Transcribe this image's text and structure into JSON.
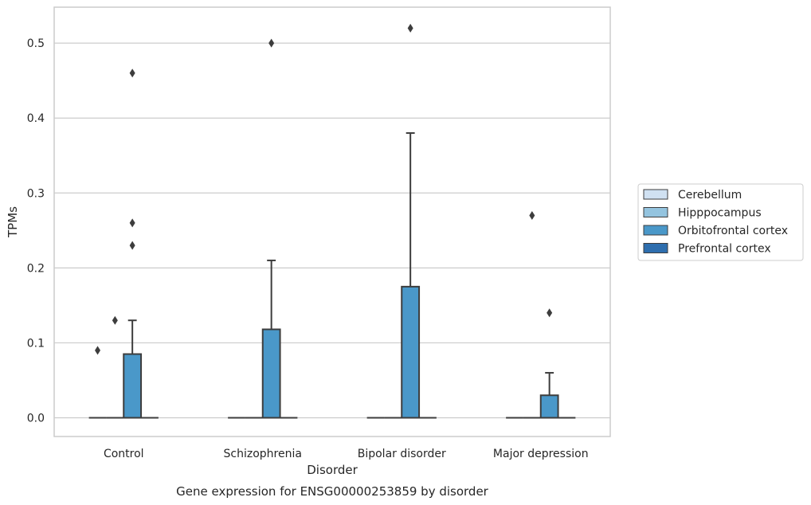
{
  "chart_data": {
    "type": "box",
    "title": "",
    "caption": "Gene expression for ENSG00000253859 by disorder",
    "xlabel": "Disorder",
    "ylabel": "TPMs",
    "ylim": [
      -0.025,
      0.548
    ],
    "yticks": [
      0.0,
      0.1,
      0.2,
      0.3,
      0.4,
      0.5
    ],
    "ytick_labels": [
      "0.0",
      "0.1",
      "0.2",
      "0.3",
      "0.4",
      "0.5"
    ],
    "grid": "horizontal",
    "legend_position": "right",
    "categories": [
      "Control",
      "Schizophrenia",
      "Bipolar disorder",
      "Major depression"
    ],
    "series": [
      {
        "name": "Cerebellum",
        "color": "#d0e1f2",
        "boxes": [
          {
            "q1": 0,
            "median": 0,
            "q3": 0,
            "whisker_low": 0,
            "whisker_high": 0,
            "outliers": [
              0.09
            ]
          },
          {
            "q1": 0,
            "median": 0,
            "q3": 0,
            "whisker_low": 0,
            "whisker_high": 0,
            "outliers": []
          },
          {
            "q1": 0,
            "median": 0,
            "q3": 0,
            "whisker_low": 0,
            "whisker_high": 0,
            "outliers": []
          },
          {
            "q1": 0,
            "median": 0,
            "q3": 0,
            "whisker_low": 0,
            "whisker_high": 0,
            "outliers": []
          }
        ]
      },
      {
        "name": "Hipppocampus",
        "color": "#94c4df",
        "boxes": [
          {
            "q1": 0,
            "median": 0,
            "q3": 0,
            "whisker_low": 0,
            "whisker_high": 0,
            "outliers": [
              0.13
            ]
          },
          {
            "q1": 0,
            "median": 0,
            "q3": 0,
            "whisker_low": 0,
            "whisker_high": 0,
            "outliers": []
          },
          {
            "q1": 0,
            "median": 0,
            "q3": 0,
            "whisker_low": 0,
            "whisker_high": 0,
            "outliers": []
          },
          {
            "q1": 0,
            "median": 0,
            "q3": 0,
            "whisker_low": 0,
            "whisker_high": 0,
            "outliers": [
              0.27
            ]
          }
        ]
      },
      {
        "name": "Orbitofrontal cortex",
        "color": "#4a98c9",
        "boxes": [
          {
            "q1": 0,
            "median": 0,
            "q3": 0.085,
            "whisker_low": 0,
            "whisker_high": 0.13,
            "outliers": [
              0.23,
              0.26,
              0.46
            ]
          },
          {
            "q1": 0,
            "median": 0,
            "q3": 0.118,
            "whisker_low": 0,
            "whisker_high": 0.21,
            "outliers": [
              0.5
            ]
          },
          {
            "q1": 0,
            "median": 0,
            "q3": 0.175,
            "whisker_low": 0,
            "whisker_high": 0.38,
            "outliers": [
              0.52
            ]
          },
          {
            "q1": 0,
            "median": 0,
            "q3": 0.03,
            "whisker_low": 0,
            "whisker_high": 0.06,
            "outliers": [
              0.14
            ]
          }
        ]
      },
      {
        "name": "Prefrontal cortex",
        "color": "#2e6eae",
        "boxes": [
          {
            "q1": 0,
            "median": 0,
            "q3": 0,
            "whisker_low": 0,
            "whisker_high": 0,
            "outliers": []
          },
          {
            "q1": 0,
            "median": 0,
            "q3": 0,
            "whisker_low": 0,
            "whisker_high": 0,
            "outliers": []
          },
          {
            "q1": 0,
            "median": 0,
            "q3": 0,
            "whisker_low": 0,
            "whisker_high": 0,
            "outliers": []
          },
          {
            "q1": 0,
            "median": 0,
            "q3": 0,
            "whisker_low": 0,
            "whisker_high": 0,
            "outliers": []
          }
        ]
      }
    ]
  }
}
